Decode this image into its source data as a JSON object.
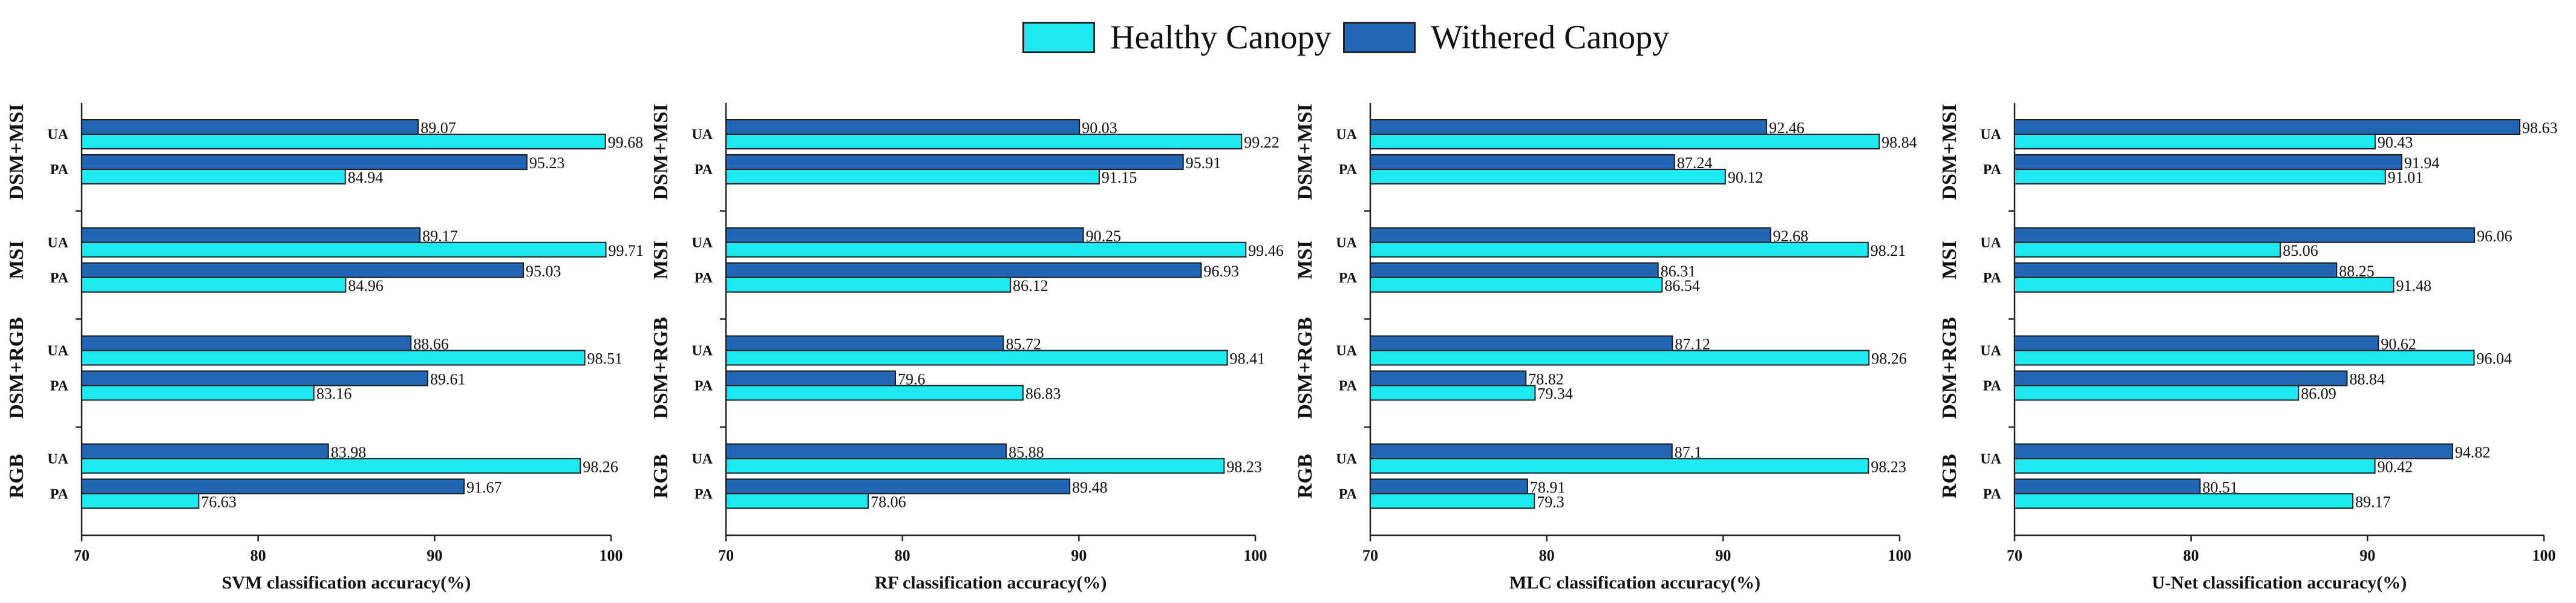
{
  "legend": {
    "healthy": "Healthy Canopy",
    "withered": "Withered Canopy"
  },
  "colors": {
    "healthy": "#1de9f0",
    "withered": "#2266b4",
    "outline": "#1a1a1a"
  },
  "chart_data": [
    {
      "type": "bar",
      "orientation": "horizontal",
      "xlabel": "SVM classification accuracy(%)",
      "xlim": [
        70,
        100
      ],
      "xticks": [
        "70",
        "80",
        "90",
        "100"
      ],
      "groups": [
        {
          "name": "DSM+MSI",
          "rows": [
            {
              "label": "UA",
              "withered": "89.07",
              "healthy": "99.68"
            },
            {
              "label": "PA",
              "withered": "95.23",
              "healthy": "84.94"
            }
          ]
        },
        {
          "name": "MSI",
          "rows": [
            {
              "label": "UA",
              "withered": "89.17",
              "healthy": "99.71"
            },
            {
              "label": "PA",
              "withered": "95.03",
              "healthy": "84.96"
            }
          ]
        },
        {
          "name": "DSM+RGB",
          "rows": [
            {
              "label": "UA",
              "withered": "88.66",
              "healthy": "98.51"
            },
            {
              "label": "PA",
              "withered": "89.61",
              "healthy": "83.16"
            }
          ]
        },
        {
          "name": "RGB",
          "rows": [
            {
              "label": "UA",
              "withered": "83.98",
              "healthy": "98.26"
            },
            {
              "label": "PA",
              "withered": "91.67",
              "healthy": "76.63"
            }
          ]
        }
      ]
    },
    {
      "type": "bar",
      "orientation": "horizontal",
      "xlabel": "RF classification accuracy(%)",
      "xlim": [
        70,
        100
      ],
      "xticks": [
        "70",
        "80",
        "90",
        "100"
      ],
      "groups": [
        {
          "name": "DSM+MSI",
          "rows": [
            {
              "label": "UA",
              "withered": "90.03",
              "healthy": "99.22"
            },
            {
              "label": "PA",
              "withered": "95.91",
              "healthy": "91.15"
            }
          ]
        },
        {
          "name": "MSI",
          "rows": [
            {
              "label": "UA",
              "withered": "90.25",
              "healthy": "99.46"
            },
            {
              "label": "PA",
              "withered": "96.93",
              "healthy": "86.12"
            }
          ]
        },
        {
          "name": "DSM+RGB",
          "rows": [
            {
              "label": "UA",
              "withered": "85.72",
              "healthy": "98.41"
            },
            {
              "label": "PA",
              "withered": "79.6",
              "healthy": "86.83"
            }
          ]
        },
        {
          "name": "RGB",
          "rows": [
            {
              "label": "UA",
              "withered": "85.88",
              "healthy": "98.23"
            },
            {
              "label": "PA",
              "withered": "89.48",
              "healthy": "78.06"
            }
          ]
        }
      ]
    },
    {
      "type": "bar",
      "orientation": "horizontal",
      "xlabel": "MLC classification accuracy(%)",
      "xlim": [
        70,
        100
      ],
      "xticks": [
        "70",
        "80",
        "90",
        "100"
      ],
      "groups": [
        {
          "name": "DSM+MSI",
          "rows": [
            {
              "label": "UA",
              "withered": "92.46",
              "healthy": "98.84"
            },
            {
              "label": "PA",
              "withered": "87.24",
              "healthy": "90.12"
            }
          ]
        },
        {
          "name": "MSI",
          "rows": [
            {
              "label": "UA",
              "withered": "92.68",
              "healthy": "98.21"
            },
            {
              "label": "PA",
              "withered": "86.31",
              "healthy": "86.54"
            }
          ]
        },
        {
          "name": "DSM+RGB",
          "rows": [
            {
              "label": "UA",
              "withered": "87.12",
              "healthy": "98.26"
            },
            {
              "label": "PA",
              "withered": "78.82",
              "healthy": "79.34"
            }
          ]
        },
        {
          "name": "RGB",
          "rows": [
            {
              "label": "UA",
              "withered": "87.1",
              "healthy": "98.23"
            },
            {
              "label": "PA",
              "withered": "78.91",
              "healthy": "79.3"
            }
          ]
        }
      ]
    },
    {
      "type": "bar",
      "orientation": "horizontal",
      "xlabel": "U-Net classification accuracy(%)",
      "xlim": [
        70,
        100
      ],
      "xticks": [
        "70",
        "80",
        "90",
        "100"
      ],
      "groups": [
        {
          "name": "DSM+MSI",
          "rows": [
            {
              "label": "UA",
              "withered": "98.63",
              "healthy": "90.43"
            },
            {
              "label": "PA",
              "withered": "91.94",
              "healthy": "91.01"
            }
          ]
        },
        {
          "name": "MSI",
          "rows": [
            {
              "label": "UA",
              "withered": "96.06",
              "healthy": "85.06"
            },
            {
              "label": "PA",
              "withered": "88.25",
              "healthy": "91.48"
            }
          ]
        },
        {
          "name": "DSM+RGB",
          "rows": [
            {
              "label": "UA",
              "withered": "90.62",
              "healthy": "96.04"
            },
            {
              "label": "PA",
              "withered": "88.84",
              "healthy": "86.09"
            }
          ]
        },
        {
          "name": "RGB",
          "rows": [
            {
              "label": "UA",
              "withered": "94.82",
              "healthy": "90.42"
            },
            {
              "label": "PA",
              "withered": "80.51",
              "healthy": "89.17"
            }
          ]
        }
      ]
    }
  ]
}
